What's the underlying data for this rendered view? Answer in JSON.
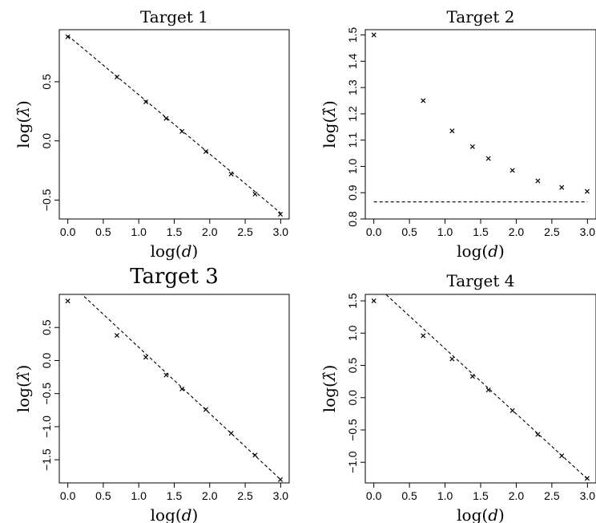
{
  "chart_data": [
    {
      "type": "scatter",
      "title": "Target 1",
      "xlabel": "log(d)",
      "ylabel": "log(λ̂)",
      "xlim": [
        -0.12,
        3.12
      ],
      "ylim": [
        -0.66,
        0.94
      ],
      "xticks": [
        "0.0",
        "0.5",
        "1.0",
        "1.5",
        "2.0",
        "2.5",
        "3.0"
      ],
      "yticks": [
        "-0.5",
        "0.0",
        "0.5"
      ],
      "grid": false,
      "series": [
        {
          "marker": "x",
          "x": [
            0.0,
            0.693,
            1.099,
            1.386,
            1.609,
            1.946,
            2.303,
            2.639,
            2.996
          ],
          "y": [
            0.88,
            0.54,
            0.33,
            0.19,
            0.08,
            -0.09,
            -0.28,
            -0.45,
            -0.62
          ]
        }
      ],
      "reference_line": {
        "style": "dashed",
        "x": [
          0.0,
          3.0
        ],
        "y": [
          0.89,
          -0.61
        ]
      }
    },
    {
      "type": "scatter",
      "title": "Target 2",
      "xlabel": "log(d)",
      "ylabel": "log(λ̂)",
      "xlim": [
        -0.12,
        3.12
      ],
      "ylim": [
        0.8,
        1.52
      ],
      "xticks": [
        "0.0",
        "0.5",
        "1.0",
        "1.5",
        "2.0",
        "2.5",
        "3.0"
      ],
      "yticks": [
        "0.8",
        "0.9",
        "1.0",
        "1.1",
        "1.2",
        "1.3",
        "1.4",
        "1.5"
      ],
      "grid": false,
      "series": [
        {
          "marker": "x",
          "x": [
            0.0,
            0.693,
            1.099,
            1.386,
            1.609,
            1.946,
            2.303,
            2.639,
            2.996
          ],
          "y": [
            1.5,
            1.25,
            1.135,
            1.075,
            1.03,
            0.985,
            0.945,
            0.92,
            0.905
          ]
        }
      ],
      "reference_line": {
        "style": "dashed",
        "x": [
          0.0,
          3.0
        ],
        "y": [
          0.865,
          0.865
        ]
      }
    },
    {
      "type": "scatter",
      "title": "Target 3",
      "xlabel": "log(d)",
      "ylabel": "log(λ̂)",
      "xlim": [
        -0.12,
        3.12
      ],
      "ylim": [
        -1.85,
        1.0
      ],
      "xticks": [
        "0.0",
        "0.5",
        "1.0",
        "1.5",
        "2.0",
        "2.5",
        "3.0"
      ],
      "yticks": [
        "-1.5",
        "-1.0",
        "-0.5",
        "0.0",
        "0.5"
      ],
      "grid": false,
      "series": [
        {
          "marker": "x",
          "x": [
            0.0,
            0.693,
            1.099,
            1.386,
            1.609,
            1.946,
            2.303,
            2.639,
            2.996
          ],
          "y": [
            0.9,
            0.38,
            0.05,
            -0.22,
            -0.43,
            -0.74,
            -1.1,
            -1.43,
            -1.8
          ]
        }
      ],
      "reference_line": {
        "style": "dashed",
        "x": [
          0.0,
          3.0
        ],
        "y": [
          1.2,
          -1.8
        ]
      }
    },
    {
      "type": "scatter",
      "title": "Target 4",
      "xlabel": "log(d)",
      "ylabel": "log(λ̂)",
      "xlim": [
        -0.12,
        3.12
      ],
      "ylim": [
        -1.32,
        1.6
      ],
      "xticks": [
        "0.0",
        "0.5",
        "1.0",
        "1.5",
        "2.0",
        "2.5",
        "3.0"
      ],
      "yticks": [
        "-1.0",
        "-0.5",
        "0.0",
        "0.5",
        "1.0",
        "1.5"
      ],
      "grid": false,
      "series": [
        {
          "marker": "x",
          "x": [
            0.0,
            0.693,
            1.099,
            1.386,
            1.609,
            1.946,
            2.303,
            2.639,
            2.996
          ],
          "y": [
            1.5,
            0.96,
            0.6,
            0.33,
            0.12,
            -0.2,
            -0.57,
            -0.9,
            -1.25
          ]
        }
      ],
      "reference_line": {
        "style": "dashed",
        "x": [
          0.0,
          3.0
        ],
        "y": [
          1.77,
          -1.26
        ]
      }
    }
  ]
}
